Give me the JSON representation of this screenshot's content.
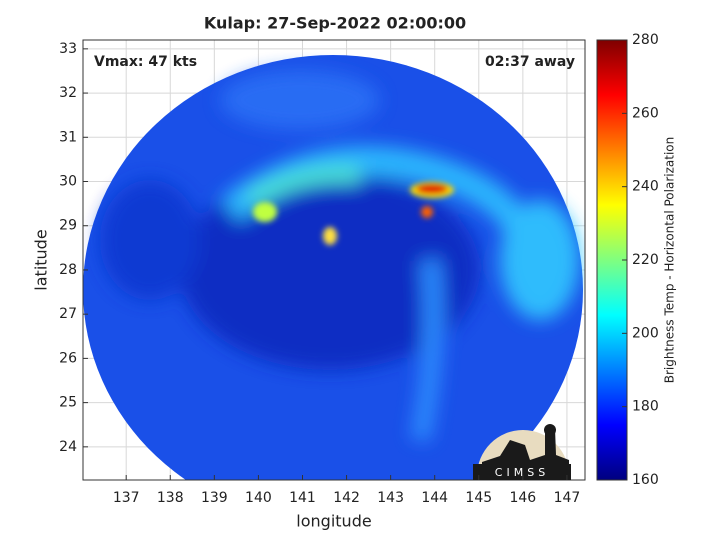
{
  "chart_data": {
    "type": "image",
    "title": "Kulap: 27-Sep-2022 02:00:00",
    "x_label": "longitude",
    "y_label": "latitude",
    "annotations": [
      "Vmax: 47 kts",
      "02:37 away"
    ],
    "xlim": [
      136.02,
      147.41
    ],
    "xticks": [
      137,
      138,
      139,
      140,
      141,
      142,
      143,
      144,
      145,
      146,
      147
    ],
    "ylim": [
      23.25,
      33.2
    ],
    "yticks": [
      24,
      25,
      26,
      27,
      28,
      29,
      30,
      31,
      32,
      33
    ],
    "grid": true,
    "colorbar": {
      "label": "Brightness Temp - Horizontal Polarization",
      "colormap": "jet",
      "clim": [
        160,
        280
      ],
      "ticks": [
        160,
        180,
        200,
        220,
        240,
        260,
        280
      ]
    },
    "logo": "CIMSS"
  }
}
